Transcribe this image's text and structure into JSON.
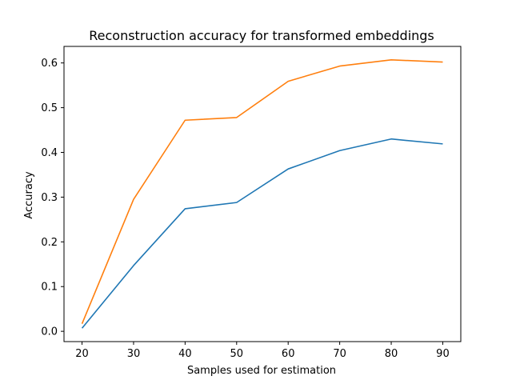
{
  "chart_data": {
    "type": "line",
    "title": "Reconstruction accuracy for transformed embeddings",
    "xlabel": "Samples used for estimation",
    "ylabel": "Accuracy",
    "x": [
      20,
      30,
      40,
      50,
      60,
      70,
      80,
      90
    ],
    "xticks": [
      "20",
      "30",
      "40",
      "50",
      "60",
      "70",
      "80",
      "90"
    ],
    "yticks": [
      "0.0",
      "0.1",
      "0.2",
      "0.3",
      "0.4",
      "0.5",
      "0.6"
    ],
    "xlim": [
      16.5,
      93.5
    ],
    "ylim": [
      -0.023,
      0.637
    ],
    "grid": false,
    "series": [
      {
        "color": "#1f77b4",
        "values": [
          0.007,
          0.147,
          0.274,
          0.288,
          0.363,
          0.404,
          0.43,
          0.419
        ]
      },
      {
        "color": "#ff7f0e",
        "values": [
          0.017,
          0.295,
          0.472,
          0.478,
          0.559,
          0.593,
          0.607,
          0.602
        ]
      }
    ]
  }
}
